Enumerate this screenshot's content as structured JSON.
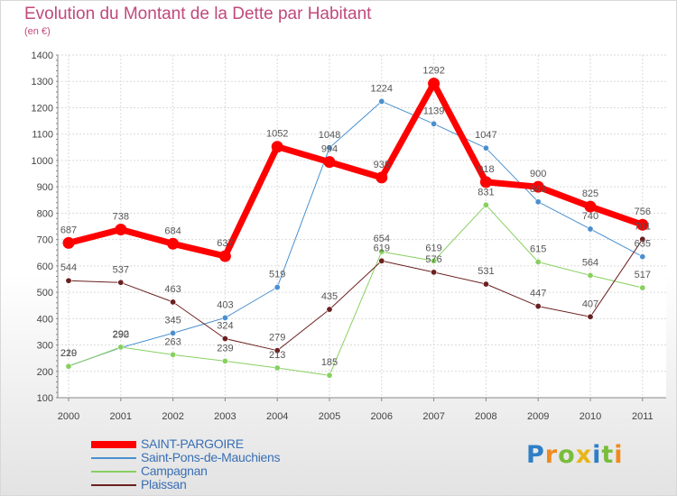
{
  "title": "Evolution du Montant de la Dette par Habitant",
  "subtitle": "(en €)",
  "chart_data": {
    "type": "line",
    "x": [
      2000,
      2001,
      2002,
      2003,
      2004,
      2005,
      2006,
      2007,
      2008,
      2009,
      2010,
      2011
    ],
    "ylim": [
      100,
      1400
    ],
    "yticks": [
      100,
      200,
      300,
      400,
      500,
      600,
      700,
      800,
      900,
      1000,
      1100,
      1200,
      1300,
      1400
    ],
    "grid": true,
    "series": [
      {
        "name": "SAINT-PARGOIRE",
        "color": "#ff0000",
        "width": 7,
        "values": [
          687,
          738,
          684,
          637,
          1052,
          994,
          935,
          1292,
          918,
          900,
          825,
          756
        ],
        "labels": [
          "687",
          "738",
          "684",
          "637",
          "1052",
          "994",
          "935",
          "1292",
          "918",
          "900",
          "825",
          "756"
        ]
      },
      {
        "name": "Saint-Pons-de-Mauchiens",
        "color": "#4a90d0",
        "width": 1,
        "values": [
          220,
          290,
          345,
          403,
          519,
          1048,
          1224,
          1139,
          1047,
          843,
          740,
          635
        ],
        "labels": [
          "220",
          "290",
          "345",
          "403",
          "519",
          "1048",
          "1224",
          "1139",
          "1047",
          "843",
          "740",
          "635"
        ]
      },
      {
        "name": "Campagnan",
        "color": "#88d060",
        "width": 1,
        "values": [
          219,
          292,
          263,
          239,
          213,
          185,
          654,
          619,
          831,
          615,
          564,
          517
        ],
        "labels": [
          "219",
          "292",
          "263",
          "239",
          "213",
          "185",
          "654",
          "619",
          "831",
          "615",
          "564",
          "517"
        ]
      },
      {
        "name": "Plaissan",
        "color": "#6b2020",
        "width": 1,
        "values": [
          544,
          537,
          463,
          324,
          279,
          435,
          619,
          576,
          531,
          447,
          407,
          701
        ],
        "labels": [
          "544",
          "537",
          "463",
          "324",
          "279",
          "435",
          "619",
          "576",
          "531",
          "447",
          "407",
          "701"
        ]
      }
    ],
    "legend": "bottom-left"
  },
  "logo": {
    "letters": [
      "P",
      "r",
      "o",
      "x",
      "i",
      "t",
      "i"
    ],
    "colors": [
      "#2e7fc6",
      "#f08a1c",
      "#79bd3b",
      "#e8b51a",
      "#2e7fc6",
      "#79bd3b",
      "#f08a1c"
    ]
  }
}
